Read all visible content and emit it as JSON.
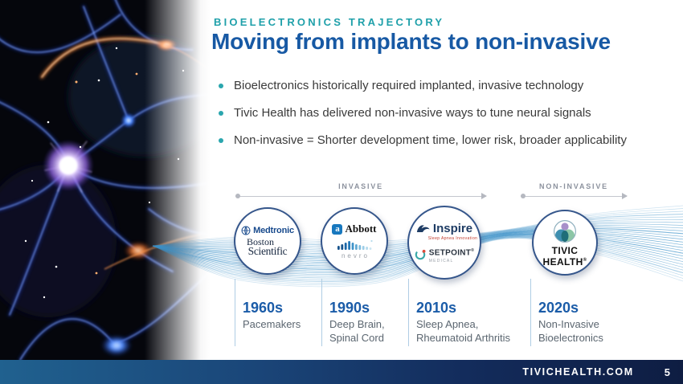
{
  "slide": {
    "eyebrow": "BIOELECTRONICS TRAJECTORY",
    "title": "Moving from implants to non-invasive",
    "bullets": [
      "Bioelectronics historically required implanted, invasive technology",
      "Tivic Health has delivered non-invasive ways to tune neural signals",
      "Non-invasive = Shorter development time, lower risk, broader applicability"
    ]
  },
  "timeline": {
    "segments": [
      {
        "label": "INVASIVE"
      },
      {
        "label": "NON-INVASIVE"
      }
    ],
    "eras": [
      {
        "year": "1960s",
        "description": "Pacemakers"
      },
      {
        "year": "1990s",
        "description": "Deep Brain,\nSpinal Cord"
      },
      {
        "year": "2010s",
        "description": "Sleep Apnea,\nRheumatoid Arthritis"
      },
      {
        "year": "2020s",
        "description": "Non-Invasive\nBioelectronics"
      }
    ]
  },
  "logos": {
    "medtronic": {
      "name": "Medtronic"
    },
    "boston_scientific": {
      "line1": "Boston",
      "line2": "Scientific"
    },
    "abbott": {
      "name": "Abbott",
      "monogram": "a"
    },
    "nevro": {
      "name": "nevro"
    },
    "inspire": {
      "name": "Inspire",
      "tagline": "Sleep Apnea Innovation"
    },
    "setpoint": {
      "name": "SETPOINT",
      "reg": "®",
      "sub": "MEDICAL"
    },
    "tivic": {
      "line1": "TIVIC",
      "line2": "HEALTH",
      "reg": "®"
    }
  },
  "footer": {
    "url": "TIVICHEALTH.COM",
    "page": "5"
  },
  "colors": {
    "accent_teal": "#1FA0AA",
    "title_blue": "#1759A4",
    "year_blue": "#1B5CA8",
    "footer_navy": "#0E1D42",
    "wave_blue": "#3C91C8"
  }
}
